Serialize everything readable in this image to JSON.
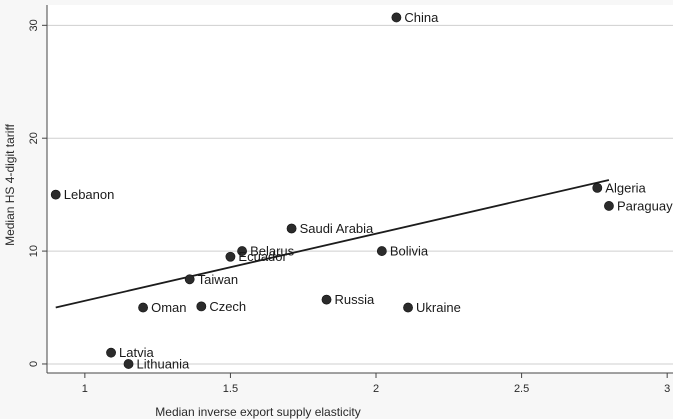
{
  "chart_data": {
    "type": "scatter",
    "title": "",
    "xlabel": "Median inverse export supply elasticity",
    "ylabel": "Median HS 4-digit tariff",
    "xlim": [
      0.87,
      3.02
    ],
    "ylim": [
      -0.8,
      31.8
    ],
    "xticks": [
      1,
      1.5,
      2,
      2.5,
      3
    ],
    "xtick_labels": [
      "1",
      "1.5",
      "2",
      "2.5",
      "3"
    ],
    "yticks": [
      0,
      10,
      20,
      30
    ],
    "ytick_labels": [
      "0",
      "10",
      "20",
      "30"
    ],
    "grid": "horizontal",
    "legend": "none",
    "colors": {
      "background": "#f7f7f7",
      "plot_bg": "#ffffff",
      "marker": "#2b2b2b",
      "line": "#1c1c1c",
      "grid": "#cfcfcf"
    },
    "points": [
      {
        "label": "China",
        "x": 2.07,
        "y": 30.7
      },
      {
        "label": "Lebanon",
        "x": 0.9,
        "y": 15.0
      },
      {
        "label": "Algeria",
        "x": 2.76,
        "y": 15.6
      },
      {
        "label": "Paraguay",
        "x": 2.8,
        "y": 14.0
      },
      {
        "label": "Saudi Arabia",
        "x": 1.71,
        "y": 12.0
      },
      {
        "label": "Belarus",
        "x": 1.54,
        "y": 10.0
      },
      {
        "label": "Ecuador",
        "x": 1.5,
        "y": 9.5
      },
      {
        "label": "Bolivia",
        "x": 2.02,
        "y": 10.0
      },
      {
        "label": "Taiwan",
        "x": 1.36,
        "y": 7.5
      },
      {
        "label": "Oman",
        "x": 1.2,
        "y": 5.0
      },
      {
        "label": "Czech",
        "x": 1.4,
        "y": 5.1
      },
      {
        "label": "Russia",
        "x": 1.83,
        "y": 5.7
      },
      {
        "label": "Ukraine",
        "x": 2.11,
        "y": 5.0
      },
      {
        "label": "Latvia",
        "x": 1.09,
        "y": 1.0
      },
      {
        "label": "Lithuania",
        "x": 1.15,
        "y": 0.0
      }
    ],
    "fit_line": {
      "x": [
        0.9,
        2.8
      ],
      "y": [
        5.0,
        16.3
      ]
    }
  }
}
